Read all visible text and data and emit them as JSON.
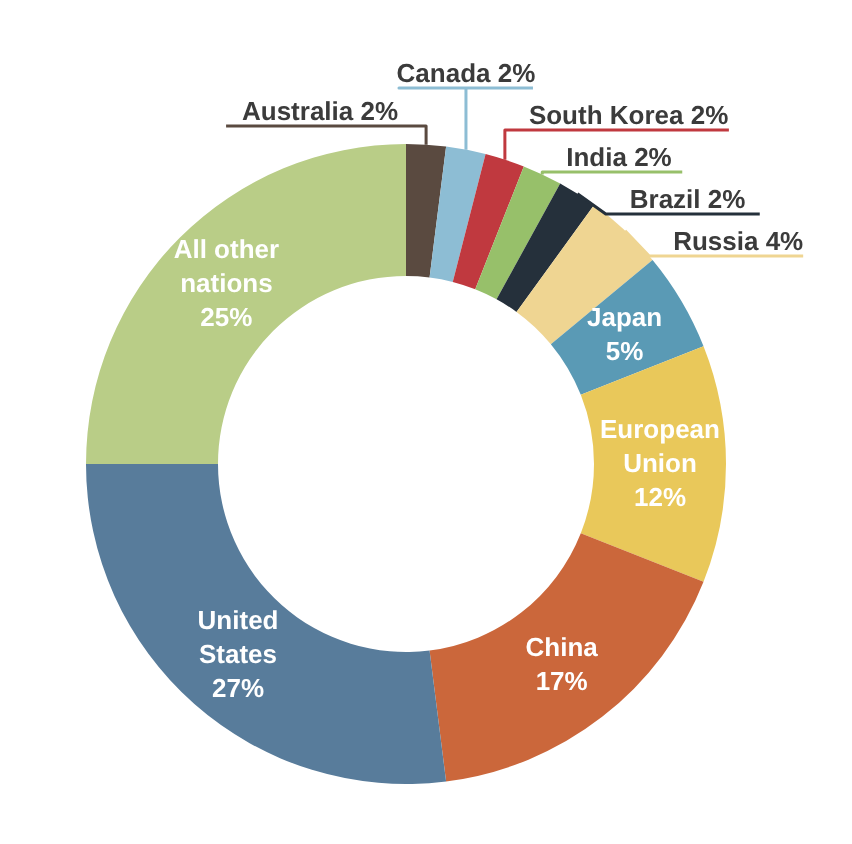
{
  "chart_data": {
    "type": "donut",
    "categories": [
      "Australia",
      "Canada",
      "South Korea",
      "India",
      "Brazil",
      "Russia",
      "Japan",
      "European Union",
      "China",
      "United States",
      "All other nations"
    ],
    "values": [
      2,
      2,
      2,
      2,
      2,
      4,
      5,
      12,
      17,
      27,
      25
    ],
    "value_labels": [
      "2%",
      "2%",
      "2%",
      "2%",
      "2%",
      "4%",
      "5%",
      "12%",
      "17%",
      "27%",
      "25%"
    ],
    "colors": [
      "#5a4a40",
      "#8dbdd4",
      "#c0393f",
      "#97c06a",
      "#25303b",
      "#efd592",
      "#5a9ab5",
      "#e9c85a",
      "#cb673b",
      "#587c9b",
      "#b9cd87"
    ]
  }
}
